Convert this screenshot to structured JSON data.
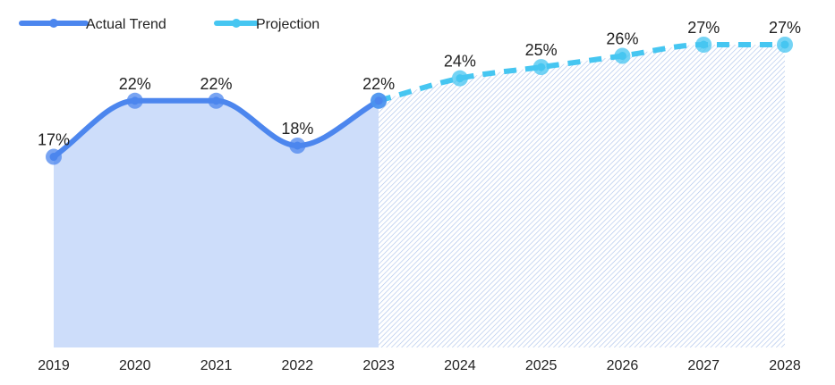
{
  "chart_data": {
    "type": "line",
    "categories": [
      "2019",
      "2020",
      "2021",
      "2022",
      "2023",
      "2024",
      "2025",
      "2026",
      "2027",
      "2028"
    ],
    "ylim": [
      0,
      27
    ],
    "grid": false,
    "legend_position": "top-left",
    "series": [
      {
        "name": "Actual Trend",
        "color": "#4C86EE",
        "fill": "#CDDDFA",
        "line_style": "solid",
        "x": [
          "2019",
          "2020",
          "2021",
          "2022",
          "2023"
        ],
        "values": [
          17,
          22,
          22,
          18,
          22
        ],
        "labels": [
          "17%",
          "22%",
          "22%",
          "18%",
          "22%"
        ]
      },
      {
        "name": "Projection",
        "color": "#46C6F1",
        "fill": "hatched #9DB8E6",
        "line_style": "dashed",
        "x": [
          "2023",
          "2024",
          "2025",
          "2026",
          "2027",
          "2028"
        ],
        "values": [
          22,
          24,
          25,
          26,
          27,
          27
        ],
        "labels": [
          "",
          "24%",
          "25%",
          "26%",
          "27%",
          "27%"
        ]
      }
    ]
  }
}
